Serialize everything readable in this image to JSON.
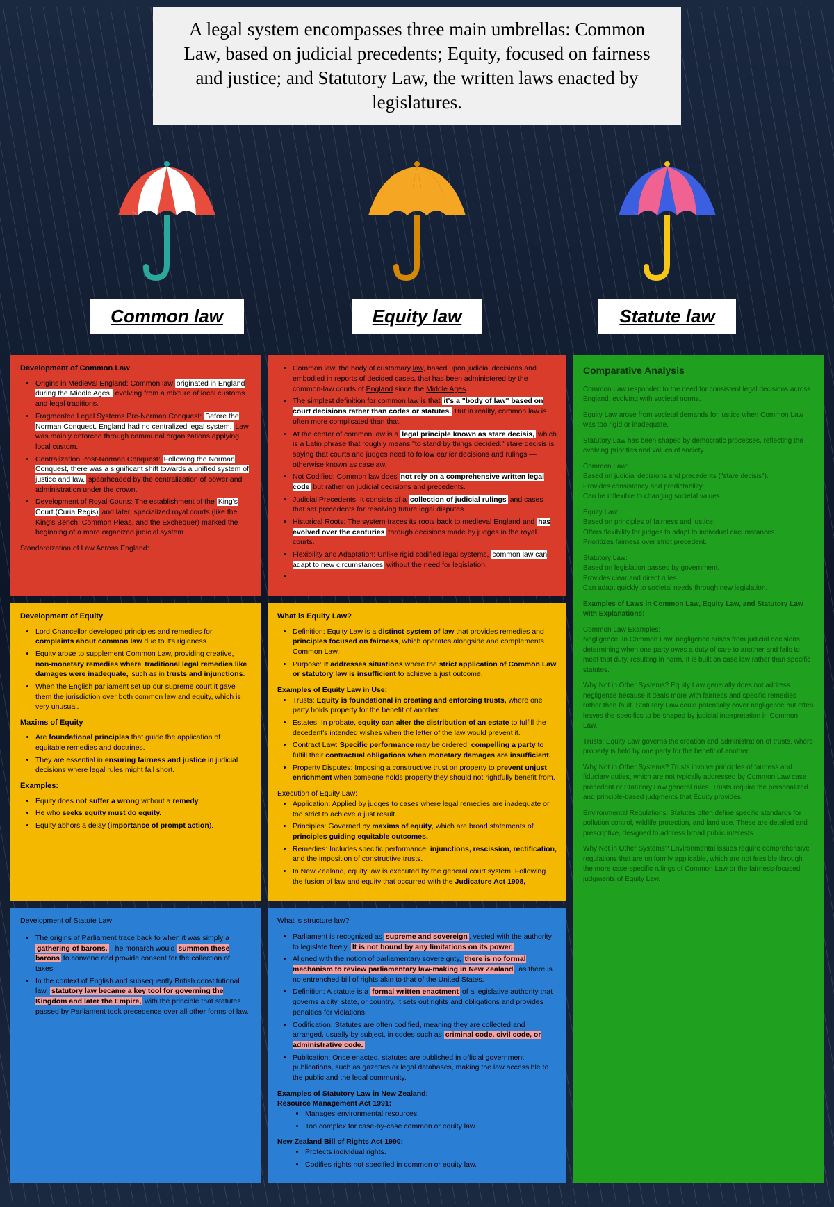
{
  "header": "A legal system encompasses three main umbrellas: Common Law, based on judicial precedents; Equity, focused on fairness and justice; and Statutory Law, the written laws enacted by legislatures.",
  "umbrellas": [
    {
      "label": "Common law",
      "canopy_colors": [
        "#e74c3c",
        "#ffffff",
        "#e74c3c",
        "#ffffff",
        "#e74c3c"
      ],
      "handle": "#2aa89c"
    },
    {
      "label": "Equity law",
      "canopy_colors": [
        "#f5a623",
        "#f5a623",
        "#f5a623",
        "#f5a623",
        "#f5a623"
      ],
      "handle": "#d48806"
    },
    {
      "label": "Statute law",
      "canopy_colors": [
        "#3b5fe0",
        "#f06292",
        "#3b5fe0",
        "#f06292",
        "#3b5fe0"
      ],
      "handle": "#f5c518"
    }
  ],
  "red_left": {
    "title": "Development of Common Law",
    "bullets": [
      "Origins in Medieval England: Common law <span class='hl-w'>originated in England during the Middle Ages,</span> evolving from a mixture of local customs and legal traditions.",
      "Fragmented Legal Systems Pre-Norman Conquest: <span class='hl-w'>Before the Norman Conquest, England had no centralized legal system.</span> Law was mainly enforced through communal organizations applying local custom.",
      "Centralization Post-Norman Conquest: <span class='hl-w'>Following the Norman Conquest, there was a significant shift towards a unified system of justice and law,</span> spearheaded by the centralization of power and administration under the crown.",
      "Development of Royal Courts: The establishment of the <span class='hl-w'>King's Court (Curia Regis)</span> and later, specialized royal courts (like the King's Bench, Common Pleas, and the Exchequer) marked the beginning of a more organized judicial system."
    ],
    "footer": "Standardization of Law Across England:"
  },
  "red_right": {
    "bullets": [
      "Common law, the body of customary <u>law</u>, based upon judicial decisions and embodied in reports of decided cases, that has been administered by the common-law courts of <u>England</u> since the <u>Middle Ages</u>.",
      "The simplest definition for common law is that <span class='hl-w'><b>it's a \"body of law\" based on court decisions rather than codes or statutes.</b></span> But in reality, common law is often more complicated than that.",
      "At the center of common law is a <span class='hl-w'><b>legal principle known as stare decisis,</b></span> which is a Latin phrase that roughly means \"to stand by things decided.\" stare decisis is saying that courts and judges need to follow earlier decisions and rulings — otherwise known as caselaw.",
      "Not Codified: Common law does <span class='hl-w'><b>not rely on a comprehensive written legal code</b></span> but rather on judicial decisions and precedents.",
      "Judicial Precedents: It consists of a <span class='hl-w'><b>collection of judicial rulings</b></span> and cases that set precedents for resolving future legal disputes.",
      "Historical Roots: The system traces its roots back to medieval England and <span class='hl-w'><b>has evolved over the centuries</b></span> through decisions made by judges in the royal courts.",
      "Flexibility and Adaptation: Unlike rigid codified legal systems, <span class='hl-w'>common law can adapt to new circumstances</span> without the need for legislation.",
      "&nbsp;"
    ]
  },
  "yellow_left": {
    "sections": [
      {
        "title": "Development of Equity",
        "bullets": [
          "Lord Chancellor developed principles and remedies for <b>complaints about common law</b> due to it's rigidness.",
          "Equity arose to supplement Common Law, providing creative, <b>non-monetary remedies where <span class='hl-y'>traditional legal remedies like damages were inadequate,</span></b> such as in <b>trusts and injunctions</b>.",
          "When the English parliament set up our supreme court it gave them the jurisdiction over both common law and equity, which is very unusual."
        ]
      },
      {
        "title": "Maxims of Equity",
        "bullets": [
          "Are <b>foundational principles</b> that guide the application of equitable remedies and doctrines.",
          "They are essential in <b>ensuring fairness and justice</b> in judicial decisions where legal rules might fall short."
        ]
      },
      {
        "title": "Examples:",
        "bullets": [
          "Equity does <b>not suffer a wrong</b> without a <b>remedy</b>.",
          "He who <b>seeks equity must do equity.</b>",
          "Equity abhors a delay (<b>importance of prompt action</b>)."
        ]
      }
    ]
  },
  "yellow_right": {
    "title": "What is Equity Law?",
    "bullets1": [
      "Definition: Equity Law is a <b>distinct system of law</b> that provides remedies and <b>principles focused on fairness</b>, which operates alongside and complements Common Law.",
      "Purpose: <b>It addresses situations</b> where the <b>strict application of Common Law or statutory law is insufficient</b> to achieve a just outcome."
    ],
    "subtitle1": "Examples of Equity Law in Use:",
    "bullets2": [
      "Trusts: <b>Equity is foundational in creating and enforcing trusts,</b> where one party holds property for the benefit of another.",
      "Estates: In probate, <b>equity can alter the distribution of an estate</b> to fulfill the decedent's intended wishes when the letter of the law would prevent it.",
      "Contract Law: <b>Specific performance</b> may be ordered, <b>compelling a party</b> to fulfill their <b>contractual obligations when monetary damages are insufficient.</b>",
      "Property Disputes: Imposing a constructive trust on property to <b>prevent unjust enrichment</b> when someone holds property they should not rightfully benefit from."
    ],
    "subtitle2": "Execution of Equity Law:",
    "bullets3": [
      "Application: Applied by judges to cases where legal remedies are inadequate or too strict to achieve a just result.",
      "Principles: Governed by <b>maxims of equity</b>, which are broad statements of <b>principles guiding equitable outcomes.</b>",
      "Remedies: Includes specific performance, <b>injunctions, rescission, rectification,</b> and the imposition of constructive trusts.",
      "In New Zealand, equity law is executed by the general court system. Following the fusion of law and equity that occurred with the <b>Judicature Act 1908,</b>"
    ]
  },
  "blue_left": {
    "title": "Development of Statute Law",
    "bullets": [
      "The origins of Parliament trace back to when it was simply a <span class='hl-p'><b>gathering of barons.</b></span> The monarch would <span class='hl-p'><b>summon these barons</b></span> to convene and provide consent for the collection of taxes.",
      "In the context of English and subsequently British constitutional law, <span class='hl-p'><b>statutory law became a key tool for governing the Kingdom and later the Empire,</b></span> with the principle that statutes passed by Parliament took precedence over all other forms of law."
    ]
  },
  "blue_right": {
    "title": "What is structure law?",
    "bullets1": [
      "Parliament is recognized as <span class='hl-p'><b>supreme and sovereign</b></span>, vested with the authority to legislate freely. <span class='hl-p'><b>It is not bound by any limitations on its power.</b></span>",
      "Aligned with the notion of parliamentary sovereignty, <span class='hl-p'><b>there is no formal mechanism to review parliamentary law-making in New Zealand</b></span>, as there is no entrenched bill of rights akin to that of the United States.",
      "Definition: A statute is a <span class='hl-p'><b>formal written enactment</b></span> of a legislative authority that governs a city, state, or country. It sets out rights and obligations and provides penalties for violations.",
      "Codification: Statutes are often codified, meaning they are collected and arranged, usually by subject, in codes such as <span class='hl-p'><b>criminal code, civil code, or administrative code.</b></span>",
      "Publication: Once enacted, statutes are published in official government publications, such as gazettes or legal databases, making the law accessible to the public and the legal community."
    ],
    "subtitle1": "Examples of Statutory Law in New Zealand:",
    "sub1": "Resource Management Act 1991:",
    "sub1_bullets": [
      "Manages environmental resources.",
      "Too complex for case-by-case common or equity law."
    ],
    "sub2": "New Zealand Bill of Rights Act 1990:",
    "sub2_bullets": [
      "Protects individual rights.",
      "Codifies rights not specified in common or equity law."
    ]
  },
  "sidebar": {
    "title": "Comparative Analysis",
    "paras": [
      "Common Law responded to the need for consistent legal decisions across England, evolving with societal norms.",
      "Equity Law arose from societal demands for justice when Common Law was too rigid or inadequate.",
      "Statutory Law has been shaped by democratic processes, reflecting the evolving priorities and values of society.",
      "Common Law:<br>Based on judicial decisions and precedents (\"stare decisis\").<br>Provides consistency and predictability.<br>Can be inflexible to changing societal values.",
      "Equity Law:<br>Based on principles of fairness and justice.<br>Offers flexibility for judges to adapt to individual circumstances.<br>Prioritizes fairness over strict precedent.",
      "Statutory Law:<br>Based on legislation passed by government.<br>Provides clear and direct rules.<br>Can adapt quickly to societal needs through new legislation.",
      "<b>Examples of Laws in Common Law, Equity Law, and Statutory Law with Explanations:</b>",
      "Common Law Examples:<br>Negligence: In Common Law, negligence arises from judicial decisions determining when one party owes a duty of care to another and fails to meet that duty, resulting in harm. It is built on case law rather than specific statutes.",
      "Why Not in Other Systems? Equity Law generally does not address negligence because it deals more with fairness and specific remedies rather than fault. Statutory Law could potentially cover negligence but often leaves the specifics to be shaped by judicial interpretation in Common Law.",
      "Trusts: Equity Law governs the creation and administration of trusts, where property is held by one party for the benefit of another.",
      "Why Not in Other Systems? Trusts involve principles of fairness and fiduciary duties, which are not typically addressed by Common Law case precedent or Statutory Law general rules. Trusts require the personalized and principle-based judgments that Equity provides.",
      "Environmental Regulations: Statutes often define specific standards for pollution control, wildlife protection, and land use. These are detailed and prescriptive, designed to address broad public interests.",
      "Why Not in Other Systems? Environmental issues require comprehensive regulations that are uniformly applicable, which are not feasible through the more case-specific rulings of Common Law or the fairness-focused judgments of Equity Law."
    ]
  }
}
